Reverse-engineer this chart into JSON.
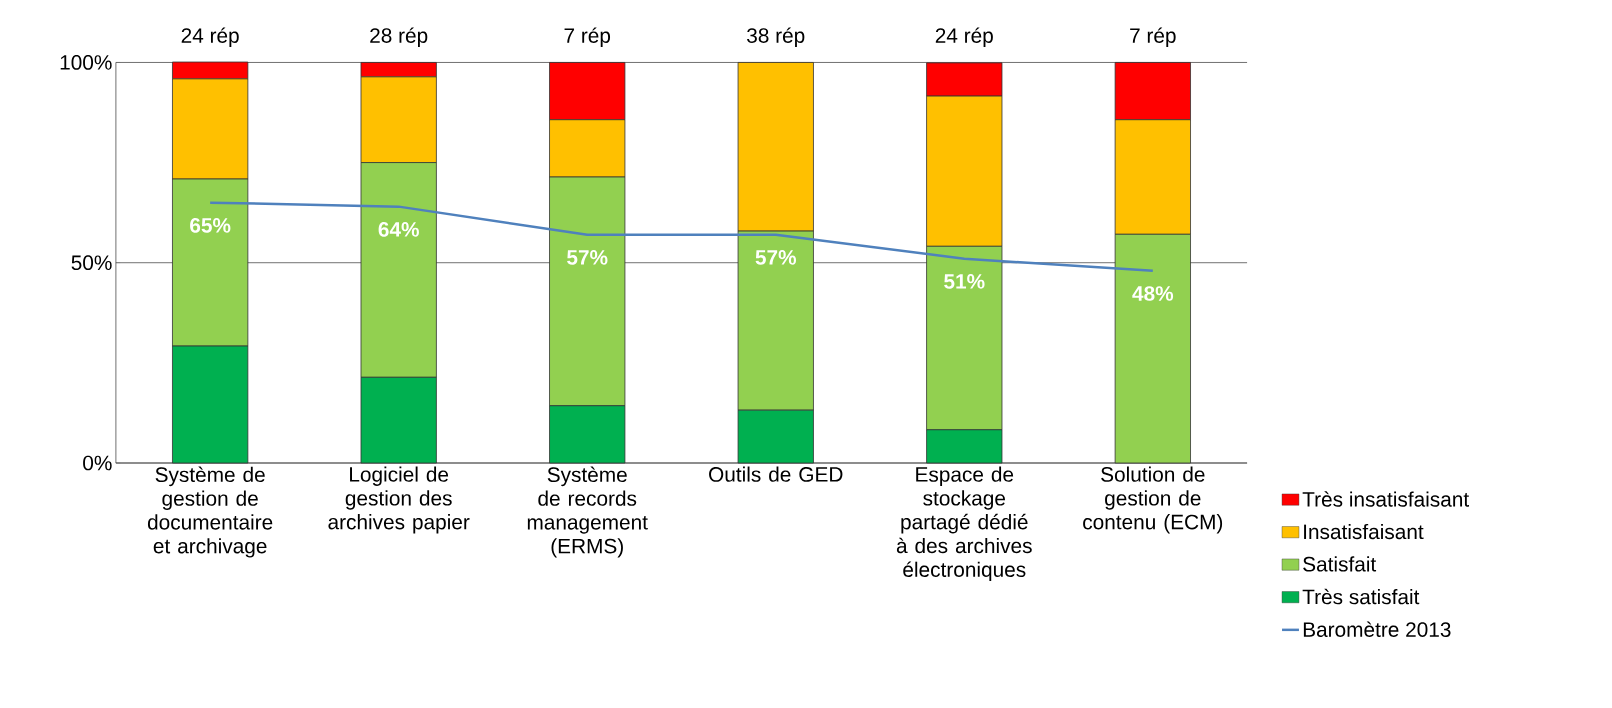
{
  "chart_data": {
    "type": "bar",
    "stacked": true,
    "categories": [
      "Système de gestion de documentaire et archivage",
      "Logiciel de gestion des archives papier",
      "Système de records management (ERMS)",
      "Outils de GED",
      "Espace de stockage partagé dédié à des archives électroniques",
      "Solution de gestion de contenu (ECM)"
    ],
    "series": [
      {
        "name": "Très satisfait",
        "color": "#00b050",
        "values": [
          29.2,
          21.4,
          14.3,
          13.2,
          8.3,
          0
        ]
      },
      {
        "name": "Satisfait",
        "color": "#92d050",
        "values": [
          41.7,
          53.6,
          57.1,
          44.7,
          45.8,
          57.1
        ]
      },
      {
        "name": "Insatisfaisant",
        "color": "#ffc000",
        "values": [
          25,
          21.4,
          14.3,
          42.1,
          37.5,
          28.6
        ]
      },
      {
        "name": "Très insatisfaisant",
        "color": "#ff0000",
        "values": [
          4.2,
          3.6,
          14.3,
          0,
          8.3,
          14.3
        ]
      },
      {
        "name": "Baromètre 2013",
        "type": "line",
        "color": "#4f81bd",
        "values": [
          65,
          64,
          57,
          57,
          51,
          48
        ],
        "value_labels": [
          "65%",
          "64%",
          "57%",
          "57%",
          "51%",
          "48%"
        ]
      }
    ],
    "annotations": [
      {
        "text": "24 rép",
        "x": "Système de gestion de documentaire et archivage",
        "y": 100
      },
      {
        "text": "28 rép",
        "x": "Logiciel de gestion des archives papier",
        "y": 100
      },
      {
        "text": "7 rép",
        "x": "Système de records management (ERMS)",
        "y": 100
      },
      {
        "text": "38 rép",
        "x": "Outils de GED",
        "y": 100
      },
      {
        "text": "24 rép",
        "x": "Espace de stockage partagé dédié à des archives électroniques",
        "y": 100
      },
      {
        "text": "7 rép",
        "x": "Solution de gestion de contenu (ECM)",
        "y": 100
      }
    ],
    "ylim": [
      0,
      100
    ],
    "yticks": [
      {
        "value": 0,
        "label": "0%"
      },
      {
        "value": 50,
        "label": "50%"
      },
      {
        "value": 100,
        "label": "100%"
      }
    ],
    "grid": "y",
    "legend": "bottom right",
    "marker": "none",
    "line_style": "solid"
  }
}
